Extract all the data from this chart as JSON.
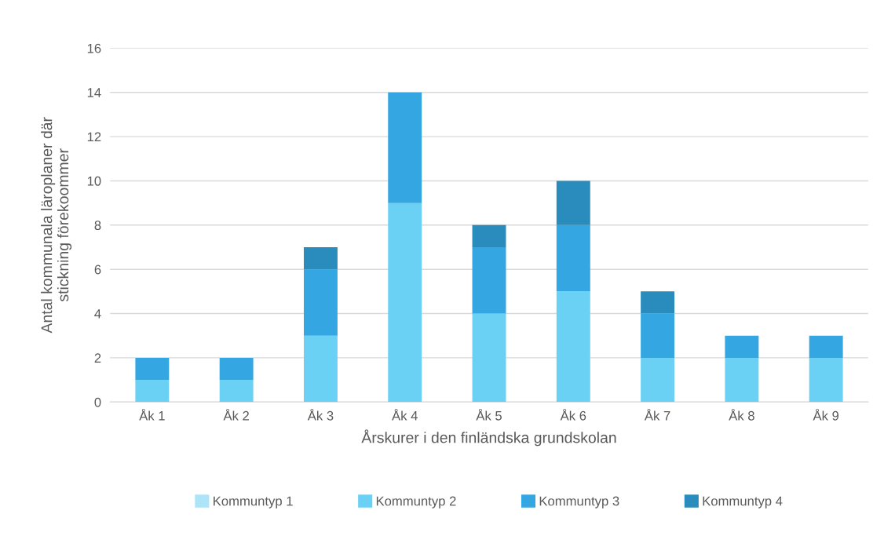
{
  "chart_data": {
    "type": "bar",
    "stacked": true,
    "xlabel": "Årskurer i den finländska grundskolan",
    "ylabel": "Antal kommunala läroplaner där\nstickning förekoommer",
    "categories": [
      "Åk 1",
      "Åk 2",
      "Åk 3",
      "Åk 4",
      "Åk 5",
      "Åk 6",
      "Åk 7",
      "Åk 8",
      "Åk 9"
    ],
    "series": [
      {
        "name": "Kommuntyp 1",
        "color": "#aee4f8",
        "values": [
          0,
          0,
          0,
          0,
          0,
          0,
          0,
          0,
          0
        ]
      },
      {
        "name": "Kommuntyp 2",
        "color": "#6bd1f4",
        "values": [
          1,
          1,
          3,
          9,
          4,
          5,
          2,
          2,
          2
        ]
      },
      {
        "name": "Kommuntyp 3",
        "color": "#34a6e1",
        "values": [
          1,
          1,
          3,
          5,
          3,
          3,
          2,
          1,
          1
        ]
      },
      {
        "name": "Kommuntyp 4",
        "color": "#2a8bbd",
        "values": [
          0,
          0,
          1,
          0,
          1,
          2,
          1,
          0,
          0
        ]
      }
    ],
    "ylim": [
      0,
      16
    ],
    "yticks": [
      0,
      2,
      4,
      6,
      8,
      10,
      12,
      14,
      16
    ],
    "grid": "y",
    "legend": "bottom"
  }
}
